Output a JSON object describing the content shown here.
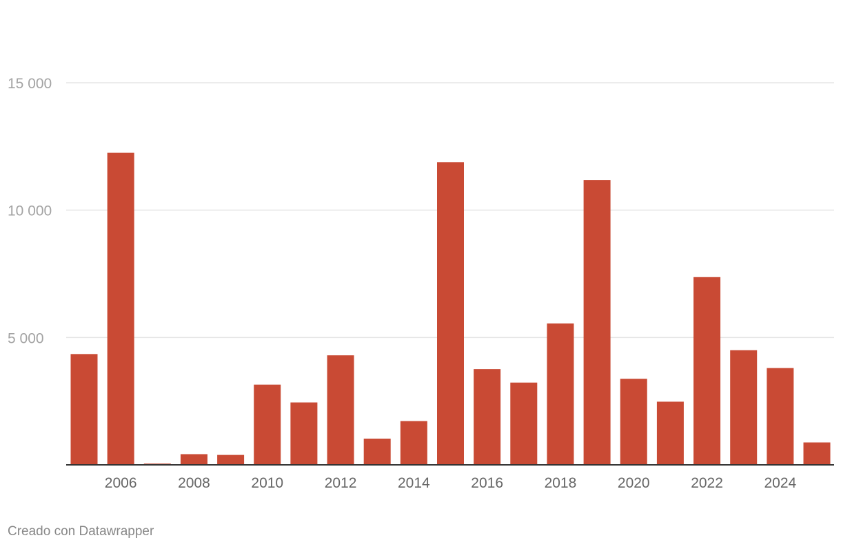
{
  "chart_data": {
    "type": "bar",
    "title": "",
    "xlabel": "",
    "ylabel": "",
    "categories": [
      "2005",
      "2006",
      "2007",
      "2008",
      "2009",
      "2010",
      "2011",
      "2012",
      "2013",
      "2014",
      "2015",
      "2016",
      "2017",
      "2018",
      "2019",
      "2020",
      "2021",
      "2022",
      "2023",
      "2024",
      "2025"
    ],
    "values": [
      4350,
      12250,
      50,
      420,
      390,
      3150,
      2450,
      4300,
      1030,
      1720,
      11880,
      3760,
      3230,
      5550,
      11180,
      3380,
      2480,
      7370,
      4500,
      3800,
      880
    ],
    "x_tick_labels": [
      "2006",
      "2008",
      "2010",
      "2012",
      "2014",
      "2016",
      "2018",
      "2020",
      "2022",
      "2024"
    ],
    "y_ticks": [
      5000,
      10000,
      15000
    ],
    "y_tick_labels": [
      "5 000",
      "10 000",
      "15 000"
    ],
    "ylim": [
      0,
      15000
    ],
    "grid": true,
    "bar_color": "#c94a34",
    "gridline_color": "#e5e5e5",
    "baseline_color": "#333333"
  },
  "footer": {
    "credit": "Creado con Datawrapper"
  }
}
